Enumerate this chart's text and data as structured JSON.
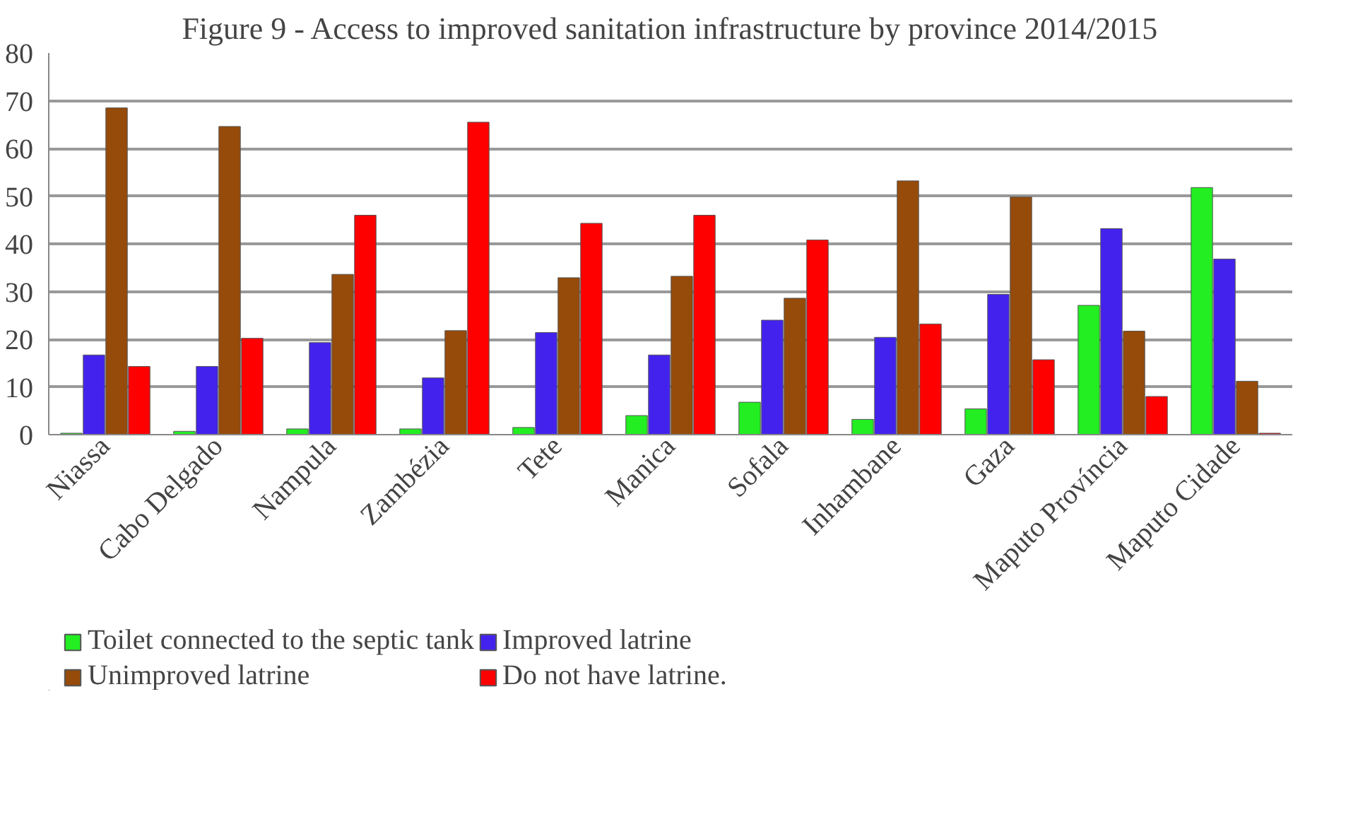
{
  "chart_data": {
    "type": "bar",
    "title": "Figure 9 - Access to improved sanitation infrastructure by province 2014/2015",
    "categories": [
      "Niassa",
      "Cabo Delgado",
      "Nampula",
      "Zambézia",
      "Tete",
      "Manica",
      "Sofala",
      "Inhambane",
      "Gaza",
      "Maputo Província",
      "Maputo Cidade"
    ],
    "series": [
      {
        "name": "Toilet connected to the septic tank",
        "color": "#22ee22",
        "values": [
          0.3,
          0.7,
          1.2,
          1.2,
          1.5,
          4,
          6.8,
          3.2,
          5.4,
          27.1,
          51.8
        ]
      },
      {
        "name": "Improved latrine",
        "color": "#4422ee",
        "values": [
          16.7,
          14.3,
          19.3,
          11.9,
          21.4,
          16.7,
          24,
          20.4,
          29.4,
          43.2,
          36.8
        ]
      },
      {
        "name": "Unimproved latrine",
        "color": "#964B0A",
        "values": [
          68.5,
          64.6,
          33.6,
          21.8,
          32.9,
          33.2,
          28.6,
          53.2,
          49.8,
          21.7,
          11.2
        ]
      },
      {
        "name": "Do not have latrine.",
        "color": "#ff0000",
        "values": [
          14.3,
          20.2,
          46,
          65.5,
          44.3,
          46,
          40.8,
          23.2,
          15.7,
          8,
          0.3
        ]
      }
    ],
    "ylim": [
      0,
      80
    ],
    "yticks": [
      0,
      10,
      20,
      30,
      40,
      50,
      60,
      70,
      80
    ],
    "grid": "y",
    "legend": "bottom"
  }
}
